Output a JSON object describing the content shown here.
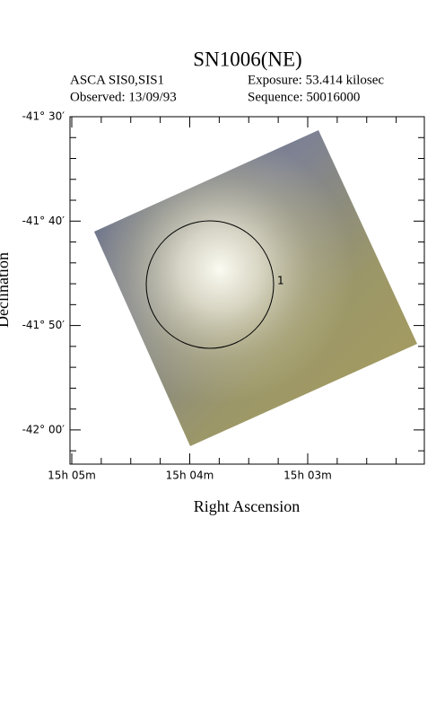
{
  "header": {
    "title": "SN1006(NE)",
    "instrument": "ASCA SIS0,SIS1",
    "exposure": "Exposure: 53.414 kilosec",
    "observed": "Observed: 13/09/93",
    "sequence": "Sequence: 50016000"
  },
  "axes": {
    "x_label": "Right Ascension",
    "y_label": "Declination",
    "x_tick_labels": [
      "15h 05m",
      "15h 04m",
      "15h 03m"
    ],
    "y_tick_labels": [
      "-41° 30′",
      "-41° 40′",
      "-41° 50′",
      "-42° 00′"
    ]
  },
  "region_label": "1"
}
